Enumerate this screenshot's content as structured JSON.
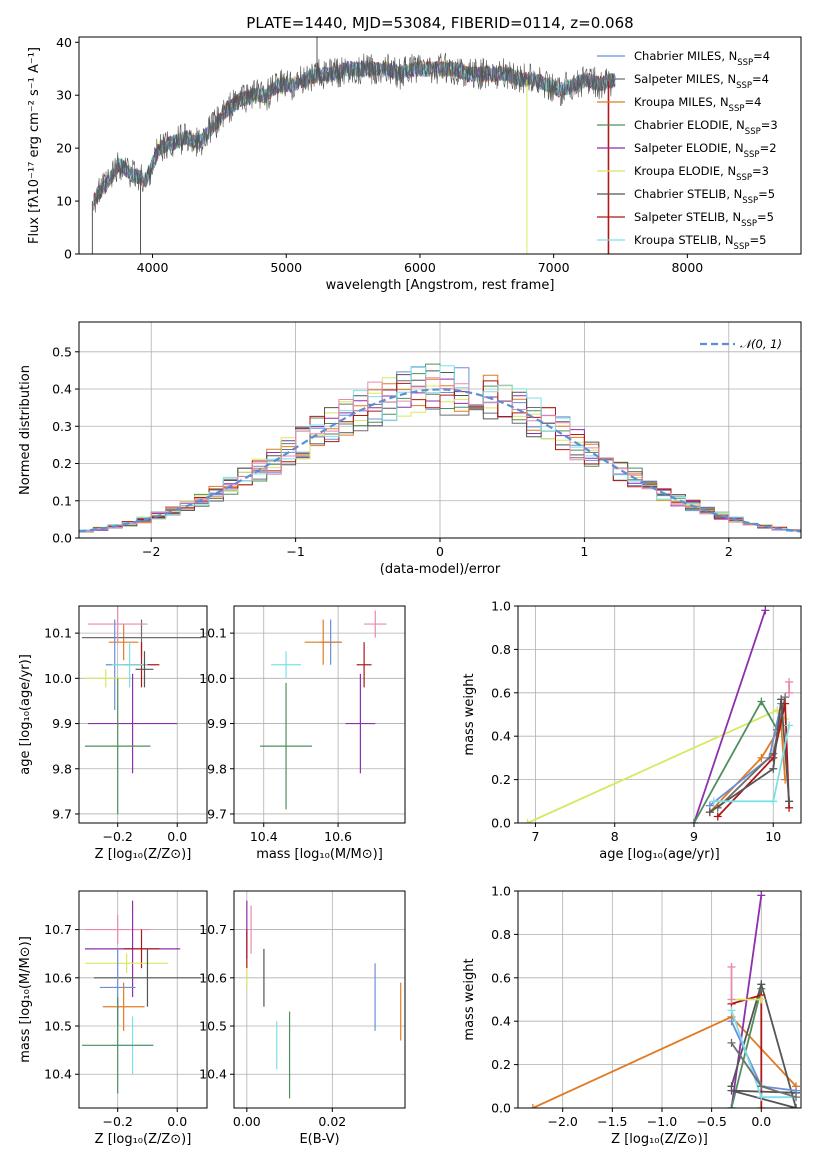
{
  "title": "PLATE=1440, MJD=53084, FIBERID=0114, z=0.068",
  "colors": {
    "Chabrier MILES": "#6b8fd6",
    "Salpeter MILES": "#6f6f6f",
    "Kroupa MILES": "#e07b24",
    "Chabrier ELODIE": "#4f8f5f",
    "Salpeter ELODIE": "#8e2fae",
    "Kroupa ELODIE": "#d8e860",
    "Chabrier STELIB": "#555555",
    "Salpeter STELIB": "#b01818",
    "Kroupa STELIB": "#7ee0e6",
    "extra_pink": "#e88ab0",
    "normal_curve": "#5b8fd6"
  },
  "legend": [
    {
      "name": "Chabrier MILES",
      "pre": "Chabrier MILES, N",
      "sub": "SSP",
      "post": "=4"
    },
    {
      "name": "Salpeter MILES",
      "pre": "Salpeter MILES, N",
      "sub": "SSP",
      "post": "=4"
    },
    {
      "name": "Kroupa MILES",
      "pre": "Kroupa MILES, N",
      "sub": "SSP",
      "post": "=4"
    },
    {
      "name": "Chabrier ELODIE",
      "pre": "Chabrier ELODIE, N",
      "sub": "SSP",
      "post": "=3"
    },
    {
      "name": "Salpeter ELODIE",
      "pre": "Salpeter ELODIE, N",
      "sub": "SSP",
      "post": "=2"
    },
    {
      "name": "Kroupa ELODIE",
      "pre": "Kroupa ELODIE, N",
      "sub": "SSP",
      "post": "=3"
    },
    {
      "name": "Chabrier STELIB",
      "pre": "Chabrier STELIB, N",
      "sub": "SSP",
      "post": "=5"
    },
    {
      "name": "Salpeter STELIB",
      "pre": "Salpeter STELIB, N",
      "sub": "SSP",
      "post": "=5"
    },
    {
      "name": "Kroupa STELIB",
      "pre": "Kroupa STELIB, N",
      "sub": "SSP",
      "post": "=5"
    }
  ],
  "hist_legend": "𝒩(0, 1)",
  "chart_data": [
    {
      "id": "spectrum",
      "type": "line",
      "xlabel": "wavelength [Angstrom, rest frame]",
      "ylabel": "Flux [fλ10⁻¹⁷ erg cm⁻² s⁻¹ A⁻¹]",
      "xlim": [
        3450,
        8850
      ],
      "ylim": [
        0,
        41
      ],
      "xticks": [
        4000,
        5000,
        6000,
        7000,
        8000
      ],
      "yticks": [
        0,
        10,
        20,
        30,
        40
      ],
      "grid": false,
      "legend_placement": "top-right",
      "continuum": {
        "x": [
          3550,
          3650,
          3750,
          3850,
          3950,
          4050,
          4150,
          4250,
          4350,
          4450,
          4550,
          4650,
          4750,
          4850,
          4950,
          5050,
          5150,
          5250,
          5350,
          5450,
          5550,
          5650,
          5750,
          5850,
          5950,
          6050,
          6150,
          6250,
          6350,
          6450,
          6550,
          6650,
          6750,
          6850,
          6950,
          7050,
          7150,
          7250,
          7350,
          7450
        ],
        "y": [
          10,
          13,
          17,
          15,
          14,
          20,
          21,
          22,
          21,
          24,
          27,
          29,
          30,
          30,
          32,
          32,
          33,
          34,
          34,
          35,
          35,
          35,
          35,
          34,
          35,
          35,
          35,
          35,
          34,
          34,
          34,
          34,
          33,
          33,
          32,
          31,
          32,
          33,
          32,
          33
        ]
      },
      "spikes": [
        {
          "x": 3550,
          "y": 0
        },
        {
          "x": 3910,
          "y": 0
        },
        {
          "x": 5230,
          "y": 41
        },
        {
          "x": 6800,
          "y": 0
        },
        {
          "x": 7410,
          "y": 0
        }
      ]
    },
    {
      "id": "residual_hist",
      "type": "bar",
      "xlabel": "(data-model)/error",
      "ylabel": "Normed distribution",
      "xlim": [
        -2.5,
        2.5
      ],
      "ylim": [
        0,
        0.58
      ],
      "xticks": [
        -2,
        -1,
        0,
        1,
        2
      ],
      "yticks": [
        0.0,
        0.1,
        0.2,
        0.3,
        0.4,
        0.5
      ],
      "grid": true,
      "legend_placement": "top-right",
      "bin_width": 0.1,
      "x_start": -2.5,
      "normal_curve": {
        "mean": 0,
        "sigma": 1
      }
    },
    {
      "id": "age_vs_Z",
      "type": "scatter",
      "xlabel": "Z [log₁₀(Z/Z⊙)]",
      "ylabel": "age  [log₁₀(age/yr)]",
      "xlim": [
        -0.33,
        0.1
      ],
      "ylim": [
        9.68,
        10.16
      ],
      "xticks": [
        -0.2,
        0.0
      ],
      "yticks": [
        9.7,
        9.8,
        9.9,
        10.0,
        10.1
      ],
      "grid": true,
      "points": [
        {
          "series": "Kroupa MILES",
          "x": -0.18,
          "xerr": 0.05,
          "y": 10.08,
          "yerr": 0.04
        },
        {
          "series": "Salpeter MILES",
          "x": -0.12,
          "xerr": 0.2,
          "y": 10.09,
          "yerr": 0.04
        },
        {
          "series": "extra_pink",
          "x": -0.2,
          "xerr": 0.1,
          "y": 10.12,
          "yerr": 0.04
        },
        {
          "series": "Chabrier MILES",
          "x": -0.21,
          "xerr": 0.03,
          "y": 10.03,
          "yerr": 0.1
        },
        {
          "series": "Salpeter STELIB",
          "x": -0.12,
          "xerr": 0.06,
          "y": 10.03,
          "yerr": 0.05
        },
        {
          "series": "Kroupa STELIB",
          "x": -0.16,
          "xerr": 0.06,
          "y": 10.03,
          "yerr": 0.05
        },
        {
          "series": "Kroupa ELODIE",
          "x": -0.24,
          "xerr": 0.07,
          "y": 10.0,
          "yerr": 0.02
        },
        {
          "series": "Chabrier STELIB",
          "x": -0.11,
          "xerr": 0.03,
          "y": 10.02,
          "yerr": 0.04
        },
        {
          "series": "Salpeter ELODIE",
          "x": -0.15,
          "xerr": 0.15,
          "y": 9.9,
          "yerr": 0.11
        },
        {
          "series": "Chabrier ELODIE",
          "x": -0.2,
          "xerr": 0.11,
          "y": 9.85,
          "yerr": 0.15
        }
      ]
    },
    {
      "id": "age_vs_mass",
      "type": "scatter",
      "xlabel": "mass [log₁₀(M/M⊙)]",
      "ylabel": "",
      "xlim": [
        10.32,
        10.78
      ],
      "ylim": [
        9.68,
        10.16
      ],
      "xticks": [
        10.4,
        10.6
      ],
      "yticks": [
        9.7,
        9.8,
        9.9,
        10.0,
        10.1
      ],
      "grid": true,
      "points": [
        {
          "series": "extra_pink",
          "x": 10.7,
          "xerr": 0.03,
          "y": 10.12,
          "yerr": 0.03
        },
        {
          "series": "Chabrier MILES",
          "x": 10.58,
          "xerr": 0.03,
          "y": 10.08,
          "yerr": 0.05
        },
        {
          "series": "Kroupa MILES",
          "x": 10.56,
          "xerr": 0.05,
          "y": 10.08,
          "yerr": 0.05
        },
        {
          "series": "Salpeter STELIB",
          "x": 10.67,
          "xerr": 0.02,
          "y": 10.03,
          "yerr": 0.05
        },
        {
          "series": "Salpeter ELODIE",
          "x": 10.66,
          "xerr": 0.04,
          "y": 9.9,
          "yerr": 0.11
        },
        {
          "series": "Kroupa STELIB",
          "x": 10.46,
          "xerr": 0.04,
          "y": 10.03,
          "yerr": 0.03
        },
        {
          "series": "Chabrier ELODIE",
          "x": 10.46,
          "xerr": 0.07,
          "y": 9.85,
          "yerr": 0.14
        }
      ]
    },
    {
      "id": "weight_vs_age",
      "type": "line",
      "xlabel": "age  [log₁₀(age/yr)]",
      "ylabel": "mass weight",
      "xlim": [
        6.78,
        10.35
      ],
      "ylim": [
        0,
        1
      ],
      "xticks": [
        7,
        8,
        9,
        10
      ],
      "yticks": [
        0.0,
        0.2,
        0.4,
        0.6,
        0.8,
        1.0
      ],
      "grid": true,
      "series": [
        {
          "name": "Kroupa ELODIE",
          "x": [
            6.9,
            10.05,
            10.15
          ],
          "y": [
            0.0,
            0.52,
            0.48
          ]
        },
        {
          "name": "Salpeter ELODIE",
          "x": [
            9.0,
            9.9
          ],
          "y": [
            0.0,
            0.98
          ]
        },
        {
          "name": "Chabrier ELODIE",
          "x": [
            9.0,
            9.85,
            10.05
          ],
          "y": [
            0.0,
            0.56,
            0.43
          ]
        },
        {
          "name": "Kroupa MILES",
          "x": [
            9.2,
            9.85,
            10.1,
            10.15
          ],
          "y": [
            0.05,
            0.3,
            0.45,
            0.2
          ]
        },
        {
          "name": "Chabrier MILES",
          "x": [
            9.2,
            9.95,
            10.1
          ],
          "y": [
            0.08,
            0.3,
            0.55
          ]
        },
        {
          "name": "Salpeter MILES",
          "x": [
            9.3,
            10.0,
            10.15
          ],
          "y": [
            0.07,
            0.32,
            0.58
          ]
        },
        {
          "name": "Salpeter STELIB",
          "x": [
            9.3,
            10.0,
            10.15,
            10.2
          ],
          "y": [
            0.03,
            0.3,
            0.55,
            0.07
          ]
        },
        {
          "name": "Chabrier STELIB",
          "x": [
            9.2,
            10.0,
            10.1,
            10.2
          ],
          "y": [
            0.05,
            0.25,
            0.57,
            0.1
          ]
        },
        {
          "name": "Kroupa STELIB",
          "x": [
            9.25,
            10.0,
            10.2
          ],
          "y": [
            0.1,
            0.1,
            0.45
          ]
        },
        {
          "name": "extra_pink",
          "x": [
            10.2,
            10.2
          ],
          "y": [
            0.65,
            0.6
          ]
        }
      ]
    },
    {
      "id": "mass_vs_Z",
      "type": "scatter",
      "xlabel": "Z [log₁₀(Z/Z⊙)]",
      "ylabel": "mass [log₁₀(M/M⊙)]",
      "xlim": [
        -0.33,
        0.1
      ],
      "ylim": [
        10.33,
        10.78
      ],
      "xticks": [
        -0.2,
        0.0
      ],
      "yticks": [
        10.4,
        10.5,
        10.6,
        10.7
      ],
      "grid": true,
      "points": [
        {
          "series": "extra_pink",
          "x": -0.2,
          "xerr": 0.11,
          "y": 10.7,
          "yerr": 0.03
        },
        {
          "series": "Salpeter ELODIE",
          "x": -0.15,
          "xerr": 0.16,
          "y": 10.66,
          "yerr": 0.1
        },
        {
          "series": "Salpeter STELIB",
          "x": -0.12,
          "xerr": 0.06,
          "y": 10.66,
          "yerr": 0.04
        },
        {
          "series": "Kroupa ELODIE",
          "x": -0.17,
          "xerr": 0.14,
          "y": 10.63,
          "yerr": 0.02
        },
        {
          "series": "Chabrier STELIB",
          "x": -0.1,
          "xerr": 0.18,
          "y": 10.6,
          "yerr": 0.06
        },
        {
          "series": "Chabrier MILES",
          "x": -0.2,
          "xerr": 0.06,
          "y": 10.58,
          "yerr": 0.08
        },
        {
          "series": "Kroupa MILES",
          "x": -0.18,
          "xerr": 0.07,
          "y": 10.54,
          "yerr": 0.05
        },
        {
          "series": "Kroupa STELIB",
          "x": -0.15,
          "xerr": 0.07,
          "y": 10.46,
          "yerr": 0.06
        },
        {
          "series": "Chabrier ELODIE",
          "x": -0.2,
          "xerr": 0.12,
          "y": 10.46,
          "yerr": 0.1
        }
      ]
    },
    {
      "id": "mass_vs_ebv",
      "type": "scatter",
      "xlabel": "E(B-V)",
      "ylabel": "",
      "xlim": [
        -0.003,
        0.037
      ],
      "ylim": [
        10.33,
        10.78
      ],
      "xticks": [
        0.0,
        0.02
      ],
      "yticks": [
        10.4,
        10.5,
        10.6,
        10.7
      ],
      "grid": true,
      "points": [
        {
          "series": "extra_pink",
          "x": 0.001,
          "y": 10.7,
          "yerr": 0.05
        },
        {
          "series": "Salpeter ELODIE",
          "x": 0.0,
          "y": 10.7,
          "yerr": 0.06
        },
        {
          "series": "Salpeter STELIB",
          "x": 0.0,
          "y": 10.66,
          "yerr": 0.04
        },
        {
          "series": "Kroupa ELODIE",
          "x": 0.0,
          "y": 10.6,
          "yerr": 0.02
        },
        {
          "series": "Chabrier STELIB",
          "x": 0.004,
          "y": 10.6,
          "yerr": 0.06
        },
        {
          "series": "Kroupa STELIB",
          "x": 0.007,
          "y": 10.46,
          "yerr": 0.05
        },
        {
          "series": "Chabrier ELODIE",
          "x": 0.01,
          "y": 10.44,
          "yerr": 0.09
        },
        {
          "series": "Chabrier MILES",
          "x": 0.03,
          "y": 10.56,
          "yerr": 0.07
        },
        {
          "series": "Kroupa MILES",
          "x": 0.036,
          "y": 10.53,
          "yerr": 0.06
        }
      ]
    },
    {
      "id": "weight_vs_Z",
      "type": "line",
      "xlabel": "Z [log₁₀(Z/Z⊙)]",
      "ylabel": "mass weight",
      "xlim": [
        -2.45,
        0.4
      ],
      "ylim": [
        0,
        1
      ],
      "xticks": [
        -2.0,
        -1.5,
        -1.0,
        -0.5,
        0.0
      ],
      "yticks": [
        0.0,
        0.2,
        0.4,
        0.6,
        0.8,
        1.0
      ],
      "grid": true,
      "series": [
        {
          "name": "Kroupa MILES",
          "x": [
            -2.3,
            -0.3,
            0.35
          ],
          "y": [
            0.0,
            0.42,
            0.1
          ]
        },
        {
          "name": "Salpeter ELODIE",
          "x": [
            -0.3,
            0.0
          ],
          "y": [
            0.0,
            0.98
          ]
        },
        {
          "name": "Chabrier ELODIE",
          "x": [
            -0.3,
            0.0
          ],
          "y": [
            0.0,
            0.55
          ]
        },
        {
          "name": "Chabrier STELIB",
          "x": [
            -0.3,
            0.0,
            0.35,
            -0.3,
            0.35
          ],
          "y": [
            0.1,
            0.57,
            0.0,
            0.08,
            0.07
          ]
        },
        {
          "name": "Salpeter STELIB",
          "x": [
            -0.3,
            0.0,
            0.0
          ],
          "y": [
            0.48,
            0.52,
            0.0
          ]
        },
        {
          "name": "Kroupa ELODIE",
          "x": [
            -0.3,
            0.0
          ],
          "y": [
            0.5,
            0.5
          ]
        },
        {
          "name": "Chabrier MILES",
          "x": [
            -0.3,
            0.0,
            0.35
          ],
          "y": [
            0.4,
            0.1,
            0.08
          ]
        },
        {
          "name": "Kroupa STELIB",
          "x": [
            -0.3,
            0.0,
            0.35
          ],
          "y": [
            0.45,
            0.05,
            0.05
          ]
        },
        {
          "name": "Salpeter MILES",
          "x": [
            -0.3,
            0.0,
            0.35
          ],
          "y": [
            0.3,
            0.1,
            0.05
          ]
        },
        {
          "name": "extra_pink",
          "x": [
            -0.3,
            -0.3
          ],
          "y": [
            0.65,
            0.5
          ]
        }
      ]
    }
  ]
}
